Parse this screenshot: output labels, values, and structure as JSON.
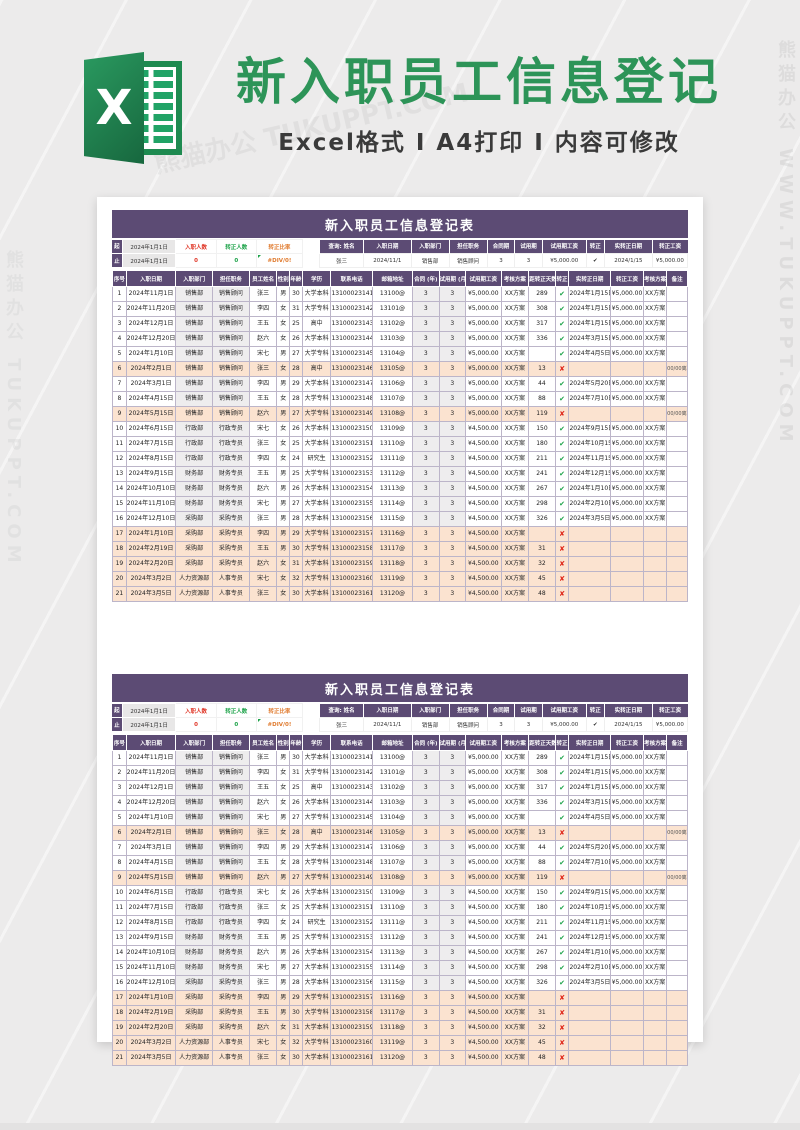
{
  "colors": {
    "accent_purple": "#5c4b74",
    "highlight_peach": "#fbe3d0",
    "brand_green": "#2d9458",
    "stat_red": "#e0392a",
    "stat_green": "#1ea34a",
    "stat_orange": "#e07b2f",
    "cell_gray": "#eeedee"
  },
  "watermark": {
    "label": "熊猫办公 TUKUPPT.COM",
    "label_vertical": "熊猫办公 WWW.TUKUPPT.COM"
  },
  "banner": {
    "excel_letter": "X",
    "title": "新入职员工信息登记",
    "subtitle": "Excel格式 Ⅰ A4打印 Ⅰ 内容可修改"
  },
  "sheet": {
    "title": "新入职员工信息登记表",
    "period": {
      "start_label": "起",
      "start_date": "2024年1月1日",
      "end_label": "止",
      "end_date": "2024年1月1日"
    },
    "stats": [
      {
        "label": "入职人数",
        "value": "0",
        "color": "#e0392a"
      },
      {
        "label": "转正人数",
        "value": "0",
        "color": "#1ea34a"
      },
      {
        "label": "转正比率",
        "value": "#DIV/0!",
        "color": "#e07b2f"
      }
    ],
    "query": {
      "headers": [
        "查询: 姓名",
        "入职日期",
        "入职部门",
        "担任职务",
        "合同期",
        "试用期",
        "试用期工资",
        "转正",
        "实转正日期",
        "转正工资"
      ],
      "values": [
        "张三",
        "2024/11/1",
        "销售部",
        "销售顾问",
        "3",
        "3",
        "¥5,000.00",
        "✔",
        "2024/1/15",
        "¥5,000.00"
      ]
    },
    "columns": [
      "序号",
      "入职日期",
      "入职部门",
      "担任职务",
      "员工姓名",
      "性别",
      "年龄",
      "学历",
      "联系电话",
      "邮箱地址",
      "合同 (年)",
      "试用期 (月)",
      "试用期工资",
      "考核方案",
      "距转正天数",
      "转正",
      "实转正日期",
      "转正工资",
      "考核方案",
      "备注"
    ],
    "rows": [
      {
        "hl": false,
        "cells": [
          "1",
          "2024年11月1日",
          "销售部",
          "销售顾问",
          "张三",
          "男",
          "30",
          "大学本科",
          "13100023141",
          "13100@",
          "3",
          "3",
          "¥5,000.00",
          "XX方案",
          "289",
          "✔",
          "2024年1月15日",
          "¥5,000.00",
          "XX方案",
          ""
        ]
      },
      {
        "hl": false,
        "cells": [
          "2",
          "2024年11月20日",
          "销售部",
          "销售顾问",
          "李四",
          "女",
          "31",
          "大学专科",
          "13100023142",
          "13101@",
          "3",
          "3",
          "¥5,000.00",
          "XX方案",
          "308",
          "✔",
          "2024年1月15日",
          "¥5,000.00",
          "XX方案",
          ""
        ]
      },
      {
        "hl": false,
        "cells": [
          "3",
          "2024年12月1日",
          "销售部",
          "销售顾问",
          "王五",
          "女",
          "25",
          "高中",
          "13100023143",
          "13102@",
          "3",
          "3",
          "¥5,000.00",
          "XX方案",
          "317",
          "✔",
          "2024年1月15日",
          "¥5,000.00",
          "XX方案",
          ""
        ]
      },
      {
        "hl": false,
        "cells": [
          "4",
          "2024年12月20日",
          "销售部",
          "销售顾问",
          "赵六",
          "女",
          "26",
          "大学本科",
          "13100023144",
          "13103@",
          "3",
          "3",
          "¥5,000.00",
          "XX方案",
          "336",
          "✔",
          "2024年3月15日",
          "¥5,000.00",
          "XX方案",
          ""
        ]
      },
      {
        "hl": false,
        "cells": [
          "5",
          "2024年1月10日",
          "销售部",
          "销售顾问",
          "宋七",
          "男",
          "27",
          "大学专科",
          "13100023145",
          "13104@",
          "3",
          "3",
          "¥5,000.00",
          "XX方案",
          "",
          "✔",
          "2024年4月5日",
          "¥5,000.00",
          "XX方案",
          ""
        ]
      },
      {
        "hl": true,
        "cells": [
          "6",
          "2024年2月1日",
          "销售部",
          "销售顾问",
          "张三",
          "女",
          "28",
          "高中",
          "13100023146",
          "13105@",
          "3",
          "3",
          "¥5,000.00",
          "XX方案",
          "13",
          "✘",
          "",
          "",
          "",
          "00/00离职"
        ]
      },
      {
        "hl": false,
        "cells": [
          "7",
          "2024年3月1日",
          "销售部",
          "销售顾问",
          "李四",
          "男",
          "29",
          "大学本科",
          "13100023147",
          "13106@",
          "3",
          "3",
          "¥5,000.00",
          "XX方案",
          "44",
          "✔",
          "2024年5月20日",
          "¥5,000.00",
          "XX方案",
          ""
        ]
      },
      {
        "hl": false,
        "cells": [
          "8",
          "2024年4月15日",
          "销售部",
          "销售顾问",
          "王五",
          "女",
          "28",
          "大学专科",
          "13100023148",
          "13107@",
          "3",
          "3",
          "¥5,000.00",
          "XX方案",
          "88",
          "✔",
          "2024年7月10日",
          "¥5,000.00",
          "XX方案",
          ""
        ]
      },
      {
        "hl": true,
        "cells": [
          "9",
          "2024年5月15日",
          "销售部",
          "销售顾问",
          "赵六",
          "男",
          "27",
          "大学专科",
          "13100023149",
          "13108@",
          "3",
          "3",
          "¥5,000.00",
          "XX方案",
          "119",
          "✘",
          "",
          "",
          "",
          "00/00离职"
        ]
      },
      {
        "hl": false,
        "cells": [
          "10",
          "2024年6月15日",
          "行政部",
          "行政专员",
          "宋七",
          "女",
          "26",
          "大学本科",
          "13100023150",
          "13109@",
          "3",
          "3",
          "¥4,500.00",
          "XX方案",
          "150",
          "✔",
          "2024年9月15日",
          "¥5,000.00",
          "XX方案",
          ""
        ]
      },
      {
        "hl": false,
        "cells": [
          "11",
          "2024年7月15日",
          "行政部",
          "行政专员",
          "张三",
          "女",
          "25",
          "大学本科",
          "13100023151",
          "13110@",
          "3",
          "3",
          "¥4,500.00",
          "XX方案",
          "180",
          "✔",
          "2024年10月15日",
          "¥5,000.00",
          "XX方案",
          ""
        ]
      },
      {
        "hl": false,
        "cells": [
          "12",
          "2024年8月15日",
          "行政部",
          "行政专员",
          "李四",
          "女",
          "24",
          "研究生",
          "13100023152",
          "13111@",
          "3",
          "3",
          "¥4,500.00",
          "XX方案",
          "211",
          "✔",
          "2024年11月15日",
          "¥5,000.00",
          "XX方案",
          ""
        ]
      },
      {
        "hl": false,
        "cells": [
          "13",
          "2024年9月15日",
          "财务部",
          "财务专员",
          "王五",
          "男",
          "25",
          "大学专科",
          "13100023153",
          "13112@",
          "3",
          "3",
          "¥4,500.00",
          "XX方案",
          "241",
          "✔",
          "2024年12月15日",
          "¥5,000.00",
          "XX方案",
          ""
        ]
      },
      {
        "hl": false,
        "cells": [
          "14",
          "2024年10月10日",
          "财务部",
          "财务专员",
          "赵六",
          "男",
          "26",
          "大学本科",
          "13100023154",
          "13113@",
          "3",
          "3",
          "¥4,500.00",
          "XX方案",
          "267",
          "✔",
          "2024年1月10日",
          "¥5,000.00",
          "XX方案",
          ""
        ]
      },
      {
        "hl": false,
        "cells": [
          "15",
          "2024年11月10日",
          "财务部",
          "财务专员",
          "宋七",
          "男",
          "27",
          "大学本科",
          "13100023155",
          "13114@",
          "3",
          "3",
          "¥4,500.00",
          "XX方案",
          "298",
          "✔",
          "2024年2月10日",
          "¥5,000.00",
          "XX方案",
          ""
        ]
      },
      {
        "hl": false,
        "cells": [
          "16",
          "2024年12月10日",
          "采购部",
          "采购专员",
          "张三",
          "男",
          "28",
          "大学本科",
          "13100023156",
          "13115@",
          "3",
          "3",
          "¥4,500.00",
          "XX方案",
          "326",
          "✔",
          "2024年3月5日",
          "¥5,000.00",
          "XX方案",
          ""
        ]
      },
      {
        "hl": true,
        "cells": [
          "17",
          "2024年1月10日",
          "采购部",
          "采购专员",
          "李四",
          "男",
          "29",
          "大学专科",
          "13100023157",
          "13116@",
          "3",
          "3",
          "¥4,500.00",
          "XX方案",
          "",
          "✘",
          "",
          "",
          "",
          ""
        ]
      },
      {
        "hl": true,
        "cells": [
          "18",
          "2024年2月19日",
          "采购部",
          "采购专员",
          "王五",
          "男",
          "30",
          "大学专科",
          "13100023158",
          "13117@",
          "3",
          "3",
          "¥4,500.00",
          "XX方案",
          "31",
          "✘",
          "",
          "",
          "",
          ""
        ]
      },
      {
        "hl": true,
        "cells": [
          "19",
          "2024年2月20日",
          "采购部",
          "采购专员",
          "赵六",
          "女",
          "31",
          "大学本科",
          "13100023159",
          "13118@",
          "3",
          "3",
          "¥4,500.00",
          "XX方案",
          "32",
          "✘",
          "",
          "",
          "",
          ""
        ]
      },
      {
        "hl": true,
        "cells": [
          "20",
          "2024年3月2日",
          "人力资源部",
          "人事专员",
          "宋七",
          "女",
          "32",
          "大学专科",
          "13100023160",
          "13119@",
          "3",
          "3",
          "¥4,500.00",
          "XX方案",
          "45",
          "✘",
          "",
          "",
          "",
          ""
        ]
      },
      {
        "hl": true,
        "cells": [
          "21",
          "2024年3月5日",
          "人力资源部",
          "人事专员",
          "张三",
          "女",
          "30",
          "大学本科",
          "13100023161",
          "13120@",
          "3",
          "3",
          "¥4,500.00",
          "XX方案",
          "48",
          "✘",
          "",
          "",
          "",
          ""
        ]
      }
    ]
  }
}
